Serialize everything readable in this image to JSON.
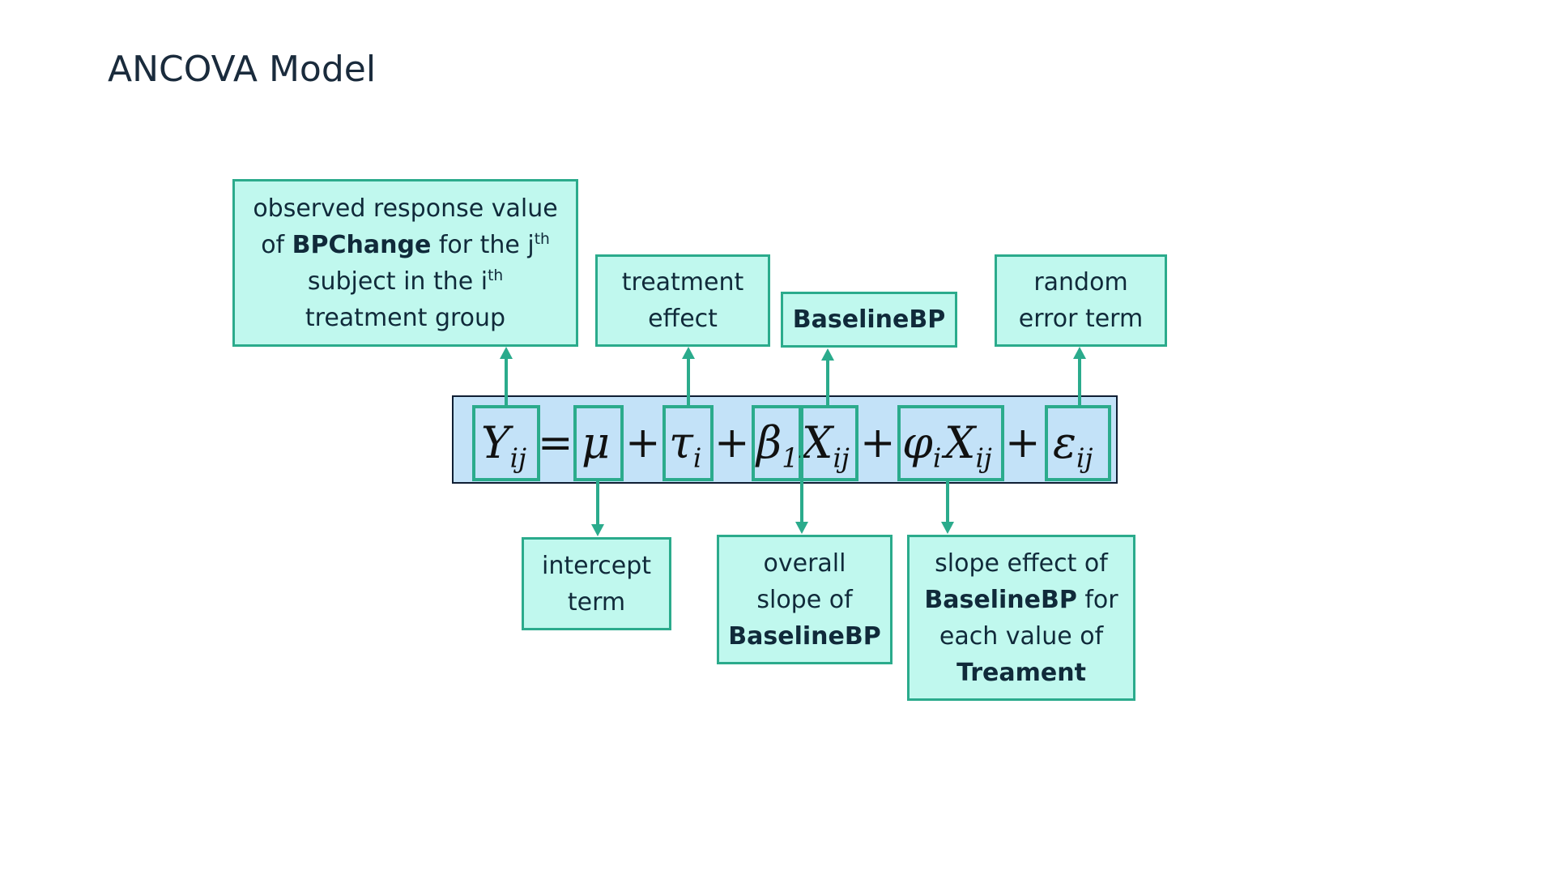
{
  "title": "ANCOVA Model",
  "equation": {
    "Y": "Y",
    "Y_sub": "ij",
    "eq": "=",
    "mu": "μ",
    "plus": "+",
    "tau": "τ",
    "tau_sub": "i",
    "beta": "β",
    "beta_sub": "1",
    "X": "X",
    "X_sub": "ij",
    "phi": "φ",
    "phi_sub": "i",
    "eps": "ε",
    "eps_sub": "ij"
  },
  "labels": {
    "response": {
      "line1": "observed response value",
      "line2_pre": "of ",
      "line2_bold": "BPChange",
      "line2_post": " for the j",
      "line2_sup": "th",
      "line3_pre": "subject in the i",
      "line3_sup": "th",
      "line4": "treatment group"
    },
    "treatment": {
      "line1": "treatment",
      "line2": "effect"
    },
    "baseline": {
      "bold": "BaselineBP"
    },
    "error": {
      "line1": "random",
      "line2": "error term"
    },
    "intercept": {
      "line1": "intercept",
      "line2": "term"
    },
    "slope": {
      "line1": "overall",
      "line2": "slope of",
      "line3_bold": "BaselineBP"
    },
    "slope_effect": {
      "line1": "slope effect of",
      "line2_bold": "BaselineBP",
      "line2_post": " for",
      "line3": "each value of",
      "line4_bold": "Treament"
    }
  },
  "colors": {
    "box_fill": "#c0f8ee",
    "box_border": "#2bab8c",
    "equation_fill": "#c3e2f8",
    "equation_border": "#0f1e33",
    "arrow": "#2bab8c"
  }
}
